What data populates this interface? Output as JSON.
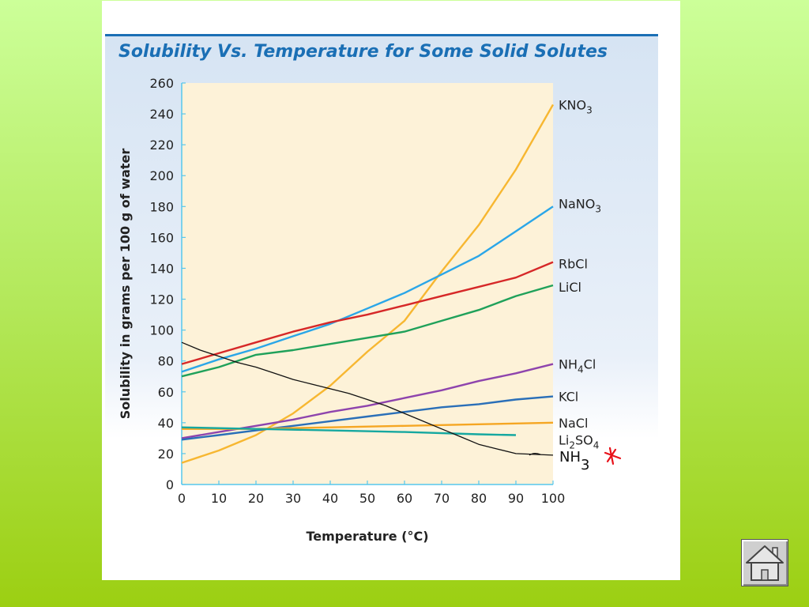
{
  "chart_data": {
    "type": "line",
    "title": "Solubility Vs. Temperature for Some Solid Solutes",
    "xlabel": "Temperature (°C)",
    "ylabel": "Solubility in grams per 100 g of water",
    "xlim": [
      0,
      100
    ],
    "ylim": [
      0,
      260
    ],
    "x_ticks": [
      0,
      10,
      20,
      30,
      40,
      50,
      60,
      70,
      80,
      90,
      100
    ],
    "y_ticks": [
      0,
      20,
      40,
      60,
      80,
      100,
      120,
      140,
      160,
      180,
      200,
      220,
      240,
      260
    ],
    "grid": false,
    "legend": "labels at line ends (right)",
    "series": [
      {
        "name": "KNO3",
        "label_main": "KNO",
        "label_sub": "3",
        "label_tail": "",
        "color": "#f7b731",
        "points": [
          [
            0,
            14
          ],
          [
            10,
            22
          ],
          [
            20,
            32
          ],
          [
            30,
            46
          ],
          [
            40,
            64
          ],
          [
            50,
            86
          ],
          [
            60,
            106
          ],
          [
            70,
            138
          ],
          [
            80,
            168
          ],
          [
            90,
            204
          ],
          [
            100,
            246
          ]
        ]
      },
      {
        "name": "NaNO3",
        "label_main": "NaNO",
        "label_sub": "3",
        "label_tail": "",
        "color": "#2aa6e8",
        "points": [
          [
            0,
            73
          ],
          [
            10,
            81
          ],
          [
            20,
            88
          ],
          [
            30,
            96
          ],
          [
            40,
            104
          ],
          [
            50,
            114
          ],
          [
            60,
            124
          ],
          [
            70,
            136
          ],
          [
            80,
            148
          ],
          [
            90,
            164
          ],
          [
            100,
            180
          ]
        ]
      },
      {
        "name": "RbCl",
        "label_main": "RbCl",
        "label_sub": "",
        "label_tail": "",
        "color": "#d62828",
        "points": [
          [
            0,
            78
          ],
          [
            10,
            85
          ],
          [
            20,
            92
          ],
          [
            30,
            99
          ],
          [
            40,
            105
          ],
          [
            50,
            110
          ],
          [
            60,
            116
          ],
          [
            70,
            122
          ],
          [
            80,
            128
          ],
          [
            90,
            134
          ],
          [
            100,
            144
          ]
        ]
      },
      {
        "name": "LiCl",
        "label_main": "LiCl",
        "label_sub": "",
        "label_tail": "",
        "color": "#1fa15a",
        "points": [
          [
            0,
            70
          ],
          [
            10,
            76
          ],
          [
            20,
            84
          ],
          [
            30,
            87
          ],
          [
            40,
            91
          ],
          [
            50,
            95
          ],
          [
            60,
            99
          ],
          [
            70,
            106
          ],
          [
            80,
            113
          ],
          [
            90,
            122
          ],
          [
            100,
            129
          ]
        ]
      },
      {
        "name": "NH4Cl",
        "label_main": "NH",
        "label_sub": "4",
        "label_tail": "Cl",
        "color": "#8e44ad",
        "points": [
          [
            0,
            30
          ],
          [
            10,
            34
          ],
          [
            20,
            38
          ],
          [
            30,
            42
          ],
          [
            40,
            47
          ],
          [
            50,
            51
          ],
          [
            60,
            56
          ],
          [
            70,
            61
          ],
          [
            80,
            67
          ],
          [
            90,
            72
          ],
          [
            100,
            78
          ]
        ]
      },
      {
        "name": "KCl",
        "label_main": "KCl",
        "label_sub": "",
        "label_tail": "",
        "color": "#2a6fb8",
        "points": [
          [
            0,
            29
          ],
          [
            10,
            32
          ],
          [
            20,
            35
          ],
          [
            30,
            38
          ],
          [
            40,
            41
          ],
          [
            50,
            44
          ],
          [
            60,
            47
          ],
          [
            70,
            50
          ],
          [
            80,
            52
          ],
          [
            90,
            55
          ],
          [
            100,
            57
          ]
        ]
      },
      {
        "name": "NaCl",
        "label_main": "NaCl",
        "label_sub": "",
        "label_tail": "",
        "color": "#f5a623",
        "points": [
          [
            0,
            36
          ],
          [
            20,
            36
          ],
          [
            40,
            37
          ],
          [
            60,
            38
          ],
          [
            80,
            39
          ],
          [
            100,
            40
          ]
        ]
      },
      {
        "name": "Li2SO4",
        "label_main": "Li",
        "label_sub": "2",
        "label_tail": "SO",
        "label_sub2": "4",
        "color": "#16a8a0",
        "points": [
          [
            0,
            37
          ],
          [
            20,
            36
          ],
          [
            40,
            35
          ],
          [
            60,
            34
          ],
          [
            80,
            32.5
          ],
          [
            90,
            32
          ]
        ]
      }
    ],
    "annotation": {
      "text": "NH",
      "subscript": "3",
      "color": "#111111",
      "marker_color": "#e8121a",
      "points": [
        [
          0,
          92
        ],
        [
          5,
          87
        ],
        [
          10,
          83
        ],
        [
          15,
          79
        ],
        [
          20,
          76
        ],
        [
          25,
          72
        ],
        [
          30,
          68
        ],
        [
          35,
          65
        ],
        [
          40,
          62
        ],
        [
          45,
          59
        ],
        [
          50,
          55
        ],
        [
          55,
          51
        ],
        [
          60,
          46
        ],
        [
          65,
          41
        ],
        [
          70,
          36
        ],
        [
          75,
          31
        ],
        [
          80,
          26
        ],
        [
          85,
          23
        ],
        [
          90,
          20
        ],
        [
          95,
          19.5
        ],
        [
          100,
          19
        ]
      ]
    }
  },
  "nav": {
    "home_icon": "house-icon"
  }
}
